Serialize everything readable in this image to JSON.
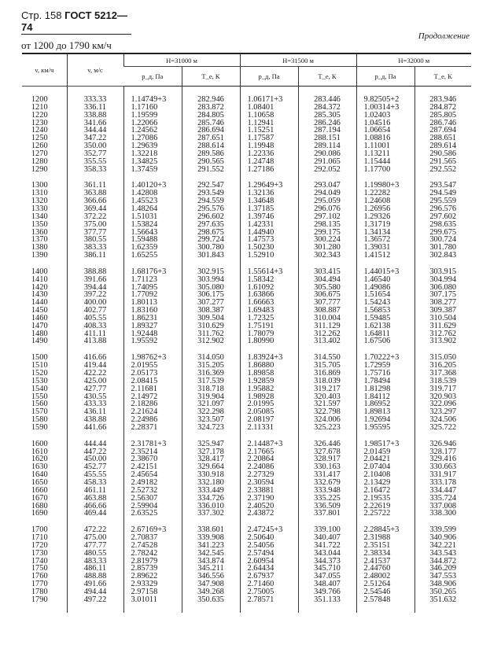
{
  "page_header": {
    "page": "Стр. 158",
    "standard": "ГОСТ 5212—74"
  },
  "continuation": "Продолжение",
  "range_title": "от 1200 до 1790 км/ч",
  "table": {
    "col_v_kmh": "v, км/ч",
    "col_v_ms": "v, м/с",
    "groups": [
      "H=31000 м",
      "H=31500 м",
      "H=32000 м"
    ],
    "sub_p": "p_д, Па",
    "sub_t": "T_e, К",
    "blocks": [
      [
        [
          "1200",
          "333.33",
          "1.14749+3",
          "282.946",
          "1.06171+3",
          "283.446",
          "9.82505+2",
          "283.946"
        ],
        [
          "1210",
          "336.11",
          "1.17160",
          "283.872",
          "1.08401",
          "284.372",
          "1.00314+3",
          "284.872"
        ],
        [
          "1220",
          "338.88",
          "1.19599",
          "284.805",
          "1.10658",
          "285.305",
          "1.02403",
          "285.805"
        ],
        [
          "1230",
          "341.66",
          "1.22066",
          "285.746",
          "1.12941",
          "286.246",
          "1.04516",
          "286.746"
        ],
        [
          "1240",
          "344.44",
          "1.24562",
          "286.694",
          "1.15251",
          "287.194",
          "1.06654",
          "287.694"
        ],
        [
          "1250",
          "347.22",
          "1.27086",
          "287.651",
          "1.17587",
          "288.151",
          "1.08816",
          "288.651"
        ],
        [
          "1260",
          "350.00",
          "1.29639",
          "288.614",
          "1.19948",
          "289.114",
          "1.11001",
          "289.614"
        ],
        [
          "1270",
          "352.77",
          "1.32218",
          "289.586",
          "1.22336",
          "290.086",
          "1.13211",
          "290.586"
        ],
        [
          "1280",
          "355.55",
          "1.34825",
          "290.565",
          "1.24748",
          "291.065",
          "1.15444",
          "291.565"
        ],
        [
          "1290",
          "358.33",
          "1.37459",
          "291.552",
          "1.27186",
          "292.052",
          "1.17700",
          "292.552"
        ]
      ],
      [
        [
          "1300",
          "361.11",
          "1.40120+3",
          "292.547",
          "1.29649+3",
          "293.047",
          "1.19980+3",
          "293.547"
        ],
        [
          "1310",
          "363.88",
          "1.42808",
          "293.549",
          "1.32136",
          "294.049",
          "1.22282",
          "294.549"
        ],
        [
          "1320",
          "366.66",
          "1.45523",
          "294.559",
          "1.34648",
          "295.059",
          "1.24608",
          "295.559"
        ],
        [
          "1330",
          "369.44",
          "1.48264",
          "295.576",
          "1.37185",
          "296.076",
          "1.26956",
          "296.576"
        ],
        [
          "1340",
          "372.22",
          "1.51031",
          "296.602",
          "1.39746",
          "297.102",
          "1.29326",
          "297.602"
        ],
        [
          "1350",
          "375.00",
          "1.53824",
          "297.635",
          "1.42331",
          "298.135",
          "1.31719",
          "298.635"
        ],
        [
          "1360",
          "377.77",
          "1.56643",
          "298.675",
          "1.44940",
          "299.175",
          "1.34134",
          "299.675"
        ],
        [
          "1370",
          "380.55",
          "1.59488",
          "299.724",
          "1.47573",
          "300.224",
          "1.36572",
          "300.724"
        ],
        [
          "1380",
          "383.33",
          "1.62359",
          "300.780",
          "1.50230",
          "301.280",
          "1.39031",
          "301.780"
        ],
        [
          "1390",
          "386.11",
          "1.65255",
          "301.843",
          "1.52910",
          "302.343",
          "1.41512",
          "302.843"
        ]
      ],
      [
        [
          "1400",
          "388.88",
          "1.68176+3",
          "302.915",
          "1.55614+3",
          "303.415",
          "1.44015+3",
          "303.915"
        ],
        [
          "1410",
          "391.66",
          "1.71123",
          "303.994",
          "1.58342",
          "304.494",
          "1.46540",
          "304.994"
        ],
        [
          "1420",
          "394.44",
          "1.74095",
          "305.080",
          "1.61092",
          "305.580",
          "1.49086",
          "306.080"
        ],
        [
          "1430",
          "397.22",
          "1.77092",
          "306.175",
          "1.63866",
          "306.675",
          "1.51654",
          "307.175"
        ],
        [
          "1440",
          "400.00",
          "1.80113",
          "307.277",
          "1.66663",
          "307.777",
          "1.54243",
          "308.277"
        ],
        [
          "1450",
          "402.77",
          "1.83160",
          "308.387",
          "1.69483",
          "308.887",
          "1.56853",
          "309.387"
        ],
        [
          "1460",
          "405.55",
          "1.86231",
          "309.504",
          "1.72325",
          "310.004",
          "1.59485",
          "310.504"
        ],
        [
          "1470",
          "408.33",
          "1.89327",
          "310.629",
          "1.75191",
          "311.129",
          "1.62138",
          "311.629"
        ],
        [
          "1480",
          "411.11",
          "1.92448",
          "311.762",
          "1.78079",
          "312.262",
          "1.64811",
          "312.762"
        ],
        [
          "1490",
          "413.88",
          "1.95592",
          "312.902",
          "1.80990",
          "313.402",
          "1.67506",
          "313.902"
        ]
      ],
      [
        [
          "1500",
          "416.66",
          "1.98762+3",
          "314.050",
          "1.83924+3",
          "314.550",
          "1.70222+3",
          "315.050"
        ],
        [
          "1510",
          "419.44",
          "2.01955",
          "315.205",
          "1.86880",
          "315.705",
          "1.72959",
          "316.205"
        ],
        [
          "1520",
          "422.22",
          "2.05173",
          "316.369",
          "1.89858",
          "316.869",
          "1.75716",
          "317.368"
        ],
        [
          "1530",
          "425.00",
          "2.08415",
          "317.539",
          "1.92859",
          "318.039",
          "1.78494",
          "318.539"
        ],
        [
          "1540",
          "427.77",
          "2.11681",
          "318.718",
          "1.95882",
          "319.217",
          "1.81298",
          "319.717"
        ],
        [
          "1550",
          "430.55",
          "2.14972",
          "319.904",
          "1.98928",
          "320.403",
          "1.84112",
          "320.903"
        ],
        [
          "1560",
          "433.33",
          "2.18286",
          "321.097",
          "2.01995",
          "321.597",
          "1.86952",
          "322.096"
        ],
        [
          "1570",
          "436.11",
          "2.21624",
          "322.298",
          "2.05085",
          "322.798",
          "1.89813",
          "323.297"
        ],
        [
          "1580",
          "438.88",
          "2.24986",
          "323.507",
          "2.08197",
          "324.006",
          "1.92694",
          "324.506"
        ],
        [
          "1590",
          "441.66",
          "2.28371",
          "324.723",
          "2.11331",
          "325.223",
          "1.95595",
          "325.722"
        ]
      ],
      [
        [
          "1600",
          "444.44",
          "2.31781+3",
          "325.947",
          "2.14487+3",
          "326.446",
          "1.98517+3",
          "326.946"
        ],
        [
          "1610",
          "447.22",
          "2.35214",
          "327.178",
          "2.17665",
          "327.678",
          "2.01459",
          "328.177"
        ],
        [
          "1620",
          "450.00",
          "2.38670",
          "328.417",
          "2.20864",
          "328.917",
          "2.04421",
          "329.416"
        ],
        [
          "1630",
          "452.77",
          "2.42151",
          "329.664",
          "2.24086",
          "330.163",
          "2.07404",
          "330.663"
        ],
        [
          "1640",
          "455.55",
          "2.45654",
          "330.918",
          "2.27329",
          "331.417",
          "2.10408",
          "331.917"
        ],
        [
          "1650",
          "458.33",
          "2.49182",
          "332.180",
          "2.30594",
          "332.679",
          "2.13429",
          "333.178"
        ],
        [
          "1660",
          "461.11",
          "2.52732",
          "333.449",
          "2.33881",
          "333.948",
          "2.16472",
          "334.447"
        ],
        [
          "1670",
          "463.88",
          "2.56307",
          "334.726",
          "2.37190",
          "335.225",
          "2.19535",
          "335.724"
        ],
        [
          "1680",
          "466.66",
          "2.59904",
          "336.010",
          "2.40520",
          "336.509",
          "2.22619",
          "337.008"
        ],
        [
          "1690",
          "469.44",
          "2.63525",
          "337.302",
          "2.43872",
          "337.801",
          "2.25722",
          "338.300"
        ]
      ],
      [
        [
          "1700",
          "472.22",
          "2.67169+3",
          "338.601",
          "2.47245+3",
          "339.100",
          "2.28845+3",
          "339.599"
        ],
        [
          "1710",
          "475.00",
          "2.70837",
          "339.908",
          "2.50640",
          "340.407",
          "2.31988",
          "340.906"
        ],
        [
          "1720",
          "477.77",
          "2.74528",
          "341.223",
          "2.54056",
          "341.722",
          "2.35151",
          "342.221"
        ],
        [
          "1730",
          "480.55",
          "2.78242",
          "342.545",
          "2.57494",
          "343.044",
          "2.38334",
          "343.543"
        ],
        [
          "1740",
          "483.33",
          "2.81979",
          "343.874",
          "2.60954",
          "344.373",
          "2.41537",
          "344.872"
        ],
        [
          "1750",
          "486.11",
          "2.85739",
          "345.211",
          "2.64434",
          "345.710",
          "2.44760",
          "346.209"
        ],
        [
          "1760",
          "488.88",
          "2.89622",
          "346.556",
          "2.67937",
          "347.055",
          "2.48002",
          "347.553"
        ],
        [
          "1770",
          "491.66",
          "2.93329",
          "347.908",
          "2.71460",
          "348.407",
          "2.51264",
          "348.906"
        ],
        [
          "1780",
          "494.44",
          "2.97158",
          "349.268",
          "2.75005",
          "349.766",
          "2.54546",
          "350.265"
        ],
        [
          "1790",
          "497.22",
          "3.01011",
          "350.635",
          "2.78571",
          "351.133",
          "2.57848",
          "351.632"
        ]
      ]
    ]
  }
}
